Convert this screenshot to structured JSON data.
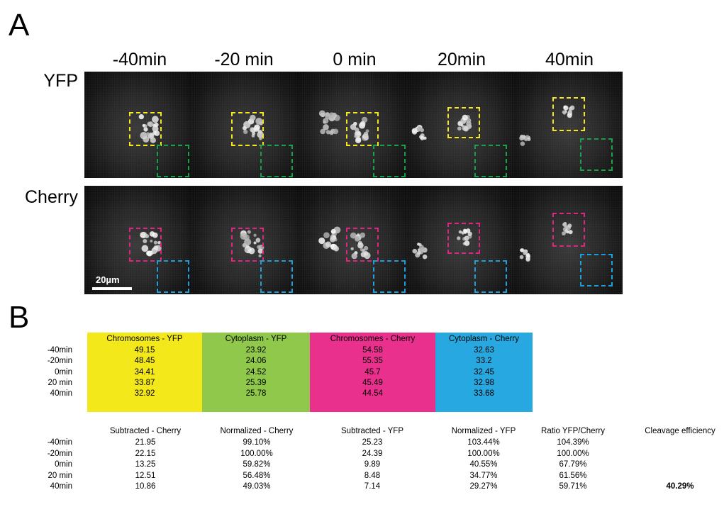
{
  "panels": {
    "a": "A",
    "b": "B"
  },
  "timepoints": [
    "-40min",
    "-20 min",
    "0 min",
    "20min",
    "40min"
  ],
  "channels": {
    "yfp": "YFP",
    "cherry": "Cherry"
  },
  "scale_bar": "20µm",
  "colors": {
    "yellow": "#f2e81a",
    "green": "#8fc84a",
    "magenta": "#e8308c",
    "blue": "#27a8e0",
    "box_yellow": "#f5e61e",
    "box_green": "#16a04a",
    "box_magenta": "#e0247f",
    "box_blue": "#1aa0dc"
  },
  "table1": {
    "headers": [
      "Chromosomes - YFP",
      "Cytoplasm - YFP",
      "Chromosomes - Cherry",
      "Cytoplasm - Cherry"
    ],
    "row_labels": [
      "-40min",
      "-20min",
      "0min",
      "20 min",
      "40min"
    ],
    "rows": [
      [
        "49.15",
        "23.92",
        "54.58",
        "32.63"
      ],
      [
        "48.45",
        "24.06",
        "55.35",
        "33.2"
      ],
      [
        "34.41",
        "24.52",
        "45.7",
        "32.45"
      ],
      [
        "33.87",
        "25.39",
        "45.49",
        "32.98"
      ],
      [
        "32.92",
        "25.78",
        "44.54",
        "33.68"
      ]
    ]
  },
  "table2": {
    "headers": [
      "Subtracted - Cherry",
      "Normalized - Cherry",
      "Subtracted - YFP",
      "Normalized - YFP",
      "Ratio YFP/Cherry",
      "Cleavage efficiency"
    ],
    "row_labels": [
      "-40min",
      "-20min",
      "0min",
      "20 min",
      "40min"
    ],
    "rows": [
      [
        "21.95",
        "99.10%",
        "25.23",
        "103.44%",
        "104.39%",
        ""
      ],
      [
        "22.15",
        "100.00%",
        "24.39",
        "100.00%",
        "100.00%",
        ""
      ],
      [
        "13.25",
        "59.82%",
        "9.89",
        "40.55%",
        "67.79%",
        ""
      ],
      [
        "12.51",
        "56.48%",
        "8.48",
        "34.77%",
        "61.56%",
        ""
      ],
      [
        "10.86",
        "49.03%",
        "7.14",
        "29.27%",
        "59.71%",
        "40.29%"
      ]
    ]
  }
}
